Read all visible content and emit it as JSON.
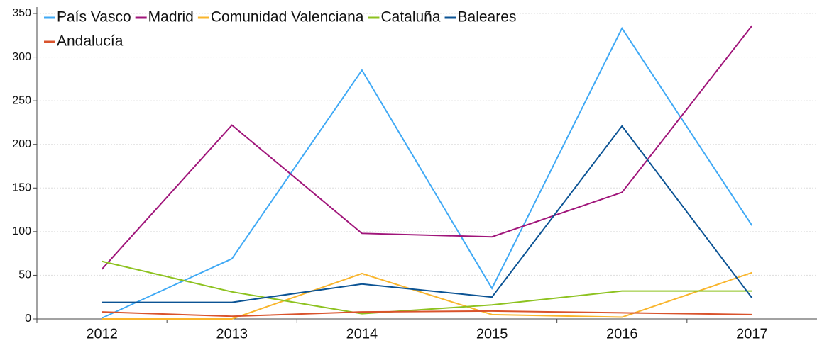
{
  "chart_data": {
    "type": "line",
    "categories": [
      "2012",
      "2013",
      "2014",
      "2015",
      "2016",
      "2017"
    ],
    "series": [
      {
        "name": "País Vasco",
        "color": "#3fa9f5",
        "values": [
          1,
          69,
          285,
          35,
          333,
          107
        ]
      },
      {
        "name": "Madrid",
        "color": "#a0157a",
        "values": [
          57,
          222,
          98,
          94,
          145,
          336
        ]
      },
      {
        "name": "Comunidad Valenciana",
        "color": "#f9b52c",
        "values": [
          0,
          0,
          52,
          5,
          2,
          53
        ]
      },
      {
        "name": "Cataluña",
        "color": "#8dc21f",
        "values": [
          66,
          31,
          6,
          16,
          32,
          32
        ]
      },
      {
        "name": "Baleares",
        "color": "#0b5394",
        "values": [
          19,
          19,
          40,
          25,
          221,
          24
        ]
      },
      {
        "name": "Andalucía",
        "color": "#d9532c",
        "values": [
          8,
          3,
          8,
          9,
          7,
          5
        ]
      }
    ],
    "ylim": [
      0,
      350
    ],
    "yticks": [
      0,
      50,
      100,
      150,
      200,
      250,
      300,
      350
    ],
    "grid": true,
    "legend": "top-left"
  }
}
